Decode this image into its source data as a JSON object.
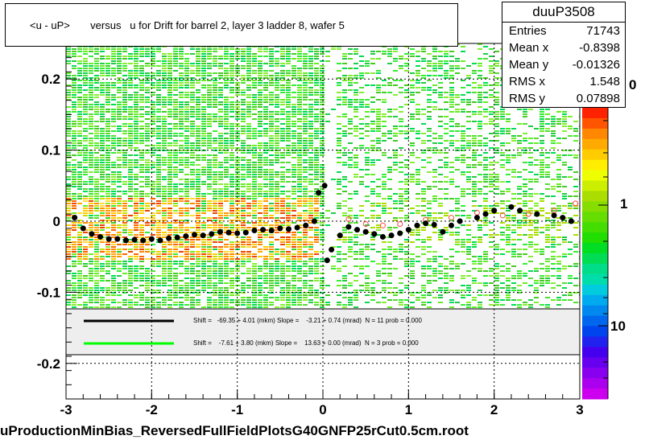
{
  "title": "<u - uP>       versus   u for Drift for barrel 2, layer 3 ladder 8, wafer 5",
  "x_axis_title": "uProductionMinBias_ReversedFullFieldPlotsG40GNFP25rCut0.5cm.root",
  "stats": {
    "name": "duuP3508",
    "rows": [
      {
        "label": "Entries",
        "value": "71743"
      },
      {
        "label": "Mean x",
        "value": "-0.8398"
      },
      {
        "label": "Mean y",
        "value": "-0.01326"
      },
      {
        "label": "RMS x",
        "value": "1.548"
      },
      {
        "label": "RMS y",
        "value": "0.07898"
      }
    ]
  },
  "legend": [
    {
      "text": "Shift =   -69.35 + 4.01 (mkm) Slope =    -3.21 + 0.74 (mrad)  N = 11 prob = 0.000",
      "color": "#000000"
    },
    {
      "text": "Shift =    -7.61 + 3.80 (mkm) Slope =    13.63 + 0.00 (mrad)  N = 3 prob = 0.000",
      "color": "#00ff00"
    }
  ],
  "chart_data": {
    "type": "heatmap",
    "title": "<u - uP>       versus   u for Drift for barrel 2, layer 3 ladder 8, wafer 5",
    "xlabel": "uProductionMinBias_ReversedFullFieldPlotsG40GNFP25rCut0.5cm.root",
    "ylabel": "",
    "xlim": [
      -3,
      3
    ],
    "ylim": [
      -0.25,
      0.25
    ],
    "x_ticks": [
      "-3",
      "-2",
      "-1",
      "0",
      "1",
      "2",
      "3"
    ],
    "y_ticks": [
      "-0.2",
      "-0.1",
      "0",
      "0.1",
      "0.2"
    ],
    "z_scale": "log",
    "z_ticks": [
      "1",
      "10"
    ],
    "z_tick_partial": "0",
    "grid": true,
    "profile_series": [
      {
        "style": "black-filled-circles",
        "points": [
          [
            -2.9,
            0.005
          ],
          [
            -2.8,
            -0.01
          ],
          [
            -2.7,
            -0.018
          ],
          [
            -2.6,
            -0.022
          ],
          [
            -2.5,
            -0.025
          ],
          [
            -2.4,
            -0.025
          ],
          [
            -2.3,
            -0.027
          ],
          [
            -2.2,
            -0.026
          ],
          [
            -2.1,
            -0.027
          ],
          [
            -2.0,
            -0.025
          ],
          [
            -1.9,
            -0.027
          ],
          [
            -1.8,
            -0.024
          ],
          [
            -1.7,
            -0.023
          ],
          [
            -1.6,
            -0.021
          ],
          [
            -1.5,
            -0.019
          ],
          [
            -1.4,
            -0.02
          ],
          [
            -1.3,
            -0.018
          ],
          [
            -1.2,
            -0.015
          ],
          [
            -1.1,
            -0.016
          ],
          [
            -1.0,
            -0.017
          ],
          [
            -0.9,
            -0.016
          ],
          [
            -0.8,
            -0.013
          ],
          [
            -0.7,
            -0.012
          ],
          [
            -0.6,
            -0.013
          ],
          [
            -0.5,
            -0.01
          ],
          [
            -0.4,
            -0.011
          ],
          [
            -0.3,
            -0.009
          ],
          [
            -0.2,
            -0.006
          ],
          [
            -0.1,
            0.0
          ],
          [
            -0.05,
            0.04
          ],
          [
            0.02,
            0.05
          ],
          [
            0.05,
            -0.055
          ],
          [
            0.1,
            -0.04
          ],
          [
            0.2,
            -0.02
          ],
          [
            0.3,
            -0.008
          ],
          [
            0.4,
            -0.012
          ],
          [
            0.5,
            -0.015
          ],
          [
            0.6,
            -0.018
          ],
          [
            0.7,
            -0.022
          ],
          [
            0.8,
            -0.02
          ],
          [
            0.9,
            -0.017
          ],
          [
            1.0,
            -0.012
          ],
          [
            1.1,
            -0.006
          ],
          [
            1.2,
            -0.003
          ],
          [
            1.3,
            -0.005
          ],
          [
            1.4,
            -0.015
          ],
          [
            1.5,
            -0.006
          ],
          [
            1.6,
            0.0
          ],
          [
            1.8,
            0.005
          ],
          [
            1.9,
            0.01
          ],
          [
            2.0,
            0.015
          ],
          [
            2.2,
            0.02
          ],
          [
            2.3,
            0.015
          ],
          [
            2.5,
            0.01
          ],
          [
            2.7,
            0.008
          ],
          [
            2.8,
            0.005
          ],
          [
            2.9,
            0.0
          ]
        ]
      },
      {
        "style": "red-open-circles",
        "points": [
          [
            0.3,
            0.003
          ],
          [
            0.5,
            -0.004
          ],
          [
            0.7,
            -0.006
          ],
          [
            0.9,
            -0.004
          ],
          [
            1.2,
            0.002
          ],
          [
            1.5,
            0.005
          ],
          [
            1.8,
            0.012
          ],
          [
            2.1,
            0.008
          ],
          [
            2.4,
            0.01
          ],
          [
            2.7,
            0.015
          ],
          [
            2.95,
            0.025
          ]
        ]
      }
    ]
  }
}
